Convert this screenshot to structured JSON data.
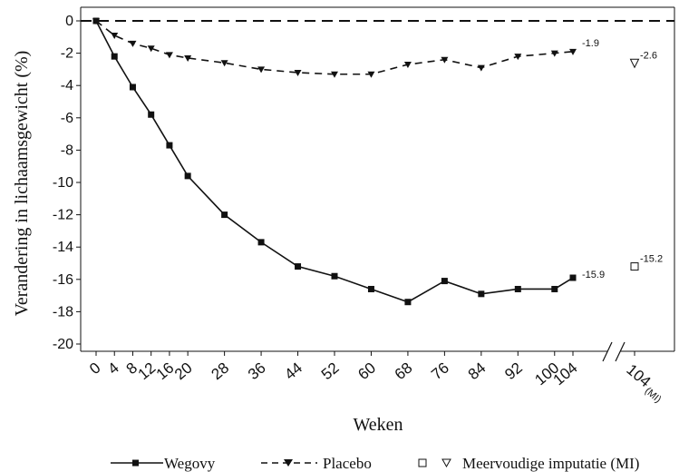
{
  "chart_data": {
    "type": "line",
    "xlabel": "Weken",
    "ylabel": "Verandering in lichaamsgewicht (%)",
    "ylim": [
      -20,
      0
    ],
    "yticks": [
      0,
      -2,
      -4,
      -6,
      -8,
      -10,
      -12,
      -14,
      -16,
      -18,
      -20
    ],
    "x_ticks": [
      0,
      4,
      8,
      12,
      16,
      20,
      28,
      36,
      44,
      52,
      60,
      68,
      76,
      84,
      92,
      100,
      104
    ],
    "x_tick_labels": [
      "0",
      "4",
      "8",
      "12",
      "16",
      "20",
      "28",
      "36",
      "44",
      "52",
      "60",
      "68",
      "76",
      "84",
      "92",
      "100",
      "104"
    ],
    "mi_tick_label": "104",
    "mi_tick_suffix": "(MI)",
    "axis_break": true,
    "grid": false,
    "reference_line": 0,
    "series": [
      {
        "name": "Wegovy",
        "style": "solid",
        "marker": "square",
        "color": "#111111",
        "x": [
          0,
          4,
          8,
          12,
          16,
          20,
          28,
          36,
          44,
          52,
          60,
          68,
          76,
          84,
          92,
          100,
          104
        ],
        "y": [
          0,
          -2.2,
          -4.1,
          -5.8,
          -7.7,
          -9.6,
          -12.0,
          -13.7,
          -15.2,
          -15.8,
          -16.6,
          -17.4,
          -16.1,
          -16.9,
          -16.6,
          -16.6,
          -15.9
        ],
        "end_label": "-15.9"
      },
      {
        "name": "Placebo",
        "style": "dashed",
        "marker": "triangle-down",
        "color": "#111111",
        "x": [
          0,
          4,
          8,
          12,
          16,
          20,
          28,
          36,
          44,
          52,
          60,
          68,
          76,
          84,
          92,
          100,
          104
        ],
        "y": [
          0,
          -0.9,
          -1.4,
          -1.7,
          -2.1,
          -2.3,
          -2.6,
          -3.0,
          -3.2,
          -3.3,
          -3.3,
          -2.7,
          -2.4,
          -2.9,
          -2.2,
          -2.0,
          -1.9
        ],
        "end_label": "-1.9"
      }
    ],
    "multiple_imputation": {
      "name": "Meervoudige imputatie (MI)",
      "points": [
        {
          "series": "Wegovy",
          "marker": "square-open",
          "y": -15.2,
          "label": "-15.2"
        },
        {
          "series": "Placebo",
          "marker": "triangle-down-open",
          "y": -2.6,
          "label": "-2.6"
        }
      ]
    },
    "legend": {
      "placement": "bottom",
      "entries": [
        "Wegovy",
        "Placebo",
        "Meervoudige imputatie (MI)"
      ]
    }
  }
}
